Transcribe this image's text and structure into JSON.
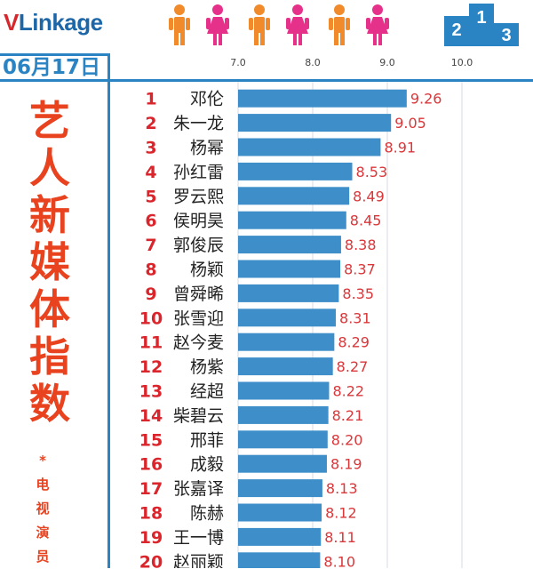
{
  "brand": {
    "logo_v": "V",
    "logo_rest": "Linkage",
    "podium_digits": [
      "2",
      "1",
      "3"
    ]
  },
  "header": {
    "date": "06月17日"
  },
  "chart_data": {
    "type": "bar",
    "orientation": "horizontal",
    "title": "艺人新媒体指数",
    "subtitle": "*电视演员",
    "xlim": [
      7.0,
      10.0
    ],
    "xticks": [
      "7.0",
      "8.0",
      "9.0",
      "10.0"
    ],
    "grid": true,
    "bar_color": "#3d8ec9",
    "value_label_color": "#d9373a",
    "rank_color": "#d9252b",
    "categories": [
      "邓伦",
      "朱一龙",
      "杨幂",
      "孙红雷",
      "罗云熙",
      "侯明昊",
      "郭俊辰",
      "杨颖",
      "曾舜晞",
      "张雪迎",
      "赵今麦",
      "杨紫",
      "经超",
      "柴碧云",
      "邢菲",
      "成毅",
      "张嘉译",
      "陈赫",
      "王一博",
      "赵丽颖"
    ],
    "ranks": [
      "1",
      "2",
      "3",
      "4",
      "5",
      "6",
      "7",
      "8",
      "9",
      "10",
      "11",
      "12",
      "13",
      "14",
      "15",
      "16",
      "17",
      "18",
      "19",
      "20"
    ],
    "values": [
      9.26,
      9.05,
      8.91,
      8.53,
      8.49,
      8.45,
      8.38,
      8.37,
      8.35,
      8.31,
      8.29,
      8.27,
      8.22,
      8.21,
      8.2,
      8.19,
      8.13,
      8.12,
      8.11,
      8.1
    ],
    "value_labels": [
      "9.26",
      "9.05",
      "8.91",
      "8.53",
      "8.49",
      "8.45",
      "8.38",
      "8.37",
      "8.35",
      "8.31",
      "8.29",
      "8.27",
      "8.22",
      "8.21",
      "8.20",
      "8.19",
      "8.13",
      "8.12",
      "8.11",
      "8.10"
    ]
  }
}
